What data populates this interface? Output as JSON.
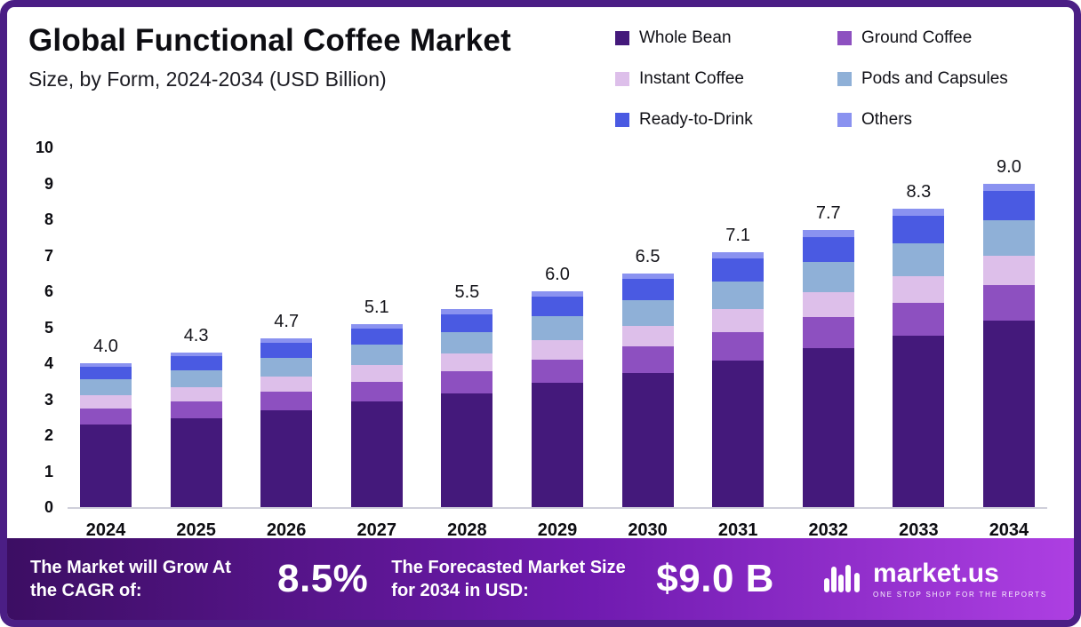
{
  "header": {
    "title": "Global Functional Coffee Market",
    "subtitle": "Size, by Form, 2024-2034 (USD Billion)"
  },
  "chart_data": {
    "type": "bar",
    "stacked": true,
    "title": "Global Functional Coffee Market Size, by Form, 2024-2034 (USD Billion)",
    "xlabel": "",
    "ylabel": "",
    "ylim": [
      0,
      10
    ],
    "yticks": [
      0,
      1,
      2,
      3,
      4,
      5,
      6,
      7,
      8,
      9,
      10
    ],
    "grid": false,
    "legend_position": "top-right",
    "categories": [
      "2024",
      "2025",
      "2026",
      "2027",
      "2028",
      "2029",
      "2030",
      "2031",
      "2032",
      "2033",
      "2034"
    ],
    "totals": [
      4.0,
      4.3,
      4.7,
      5.1,
      5.5,
      6.0,
      6.5,
      7.1,
      7.7,
      8.3,
      9.0
    ],
    "series": [
      {
        "name": "Whole Bean",
        "color": "#44197b",
        "values": [
          2.3,
          2.47,
          2.7,
          2.93,
          3.16,
          3.45,
          3.74,
          4.08,
          4.43,
          4.77,
          5.18
        ]
      },
      {
        "name": "Ground Coffee",
        "color": "#8d50c0",
        "values": [
          0.45,
          0.48,
          0.52,
          0.56,
          0.61,
          0.66,
          0.72,
          0.78,
          0.85,
          0.91,
          0.99
        ]
      },
      {
        "name": "Instant Coffee",
        "color": "#ddbfea",
        "values": [
          0.35,
          0.38,
          0.42,
          0.46,
          0.49,
          0.54,
          0.58,
          0.64,
          0.69,
          0.75,
          0.81
        ]
      },
      {
        "name": "Pods and Capsules",
        "color": "#8fb0d7",
        "values": [
          0.45,
          0.48,
          0.52,
          0.56,
          0.61,
          0.66,
          0.72,
          0.78,
          0.85,
          0.91,
          0.99
        ]
      },
      {
        "name": "Ready-to-Drink",
        "color": "#4a5ae2",
        "values": [
          0.35,
          0.38,
          0.42,
          0.46,
          0.49,
          0.54,
          0.58,
          0.64,
          0.69,
          0.75,
          0.81
        ]
      },
      {
        "name": "Others",
        "color": "#8a92f0",
        "values": [
          0.1,
          0.11,
          0.12,
          0.13,
          0.14,
          0.15,
          0.16,
          0.18,
          0.19,
          0.21,
          0.22
        ]
      }
    ]
  },
  "footer": {
    "cagr_label": "The Market will Grow At the CAGR of:",
    "cagr_value": "8.5%",
    "forecast_label": "The Forecasted Market Size for 2034 in USD:",
    "forecast_value": "$9.0 B",
    "brand": "market.us",
    "brand_tagline": "ONE STOP SHOP FOR THE REPORTS"
  }
}
